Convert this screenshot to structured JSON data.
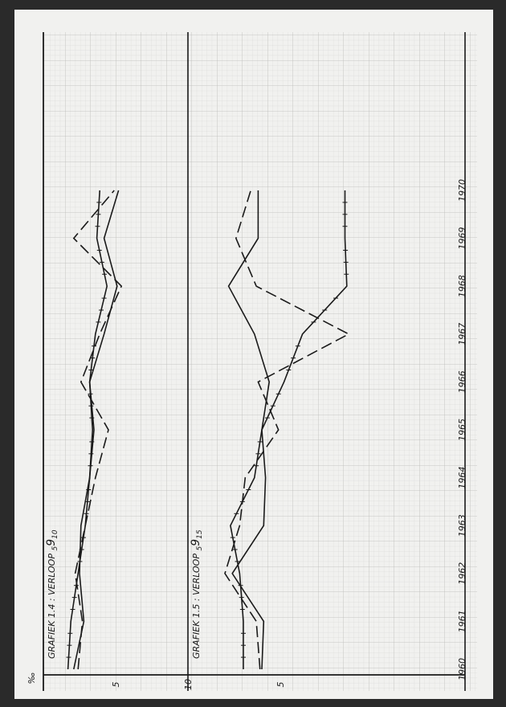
{
  "chart_data": [
    {
      "type": "line",
      "title": "GRAFIEK 1.4 : VERLOOP",
      "title_symbol": "5",
      "title_subscript": "9",
      "title_suffix": "10",
      "y_unit": "‰",
      "yticks": [
        "5",
        "10"
      ],
      "x": [
        "1960",
        "1961",
        "1962",
        "1963",
        "1964",
        "1965",
        "1966",
        "1967",
        "1968",
        "1969",
        "1970"
      ],
      "ylim": [
        0,
        10
      ],
      "series": [
        {
          "style": "solid",
          "values": [
            2.1,
            2.8,
            2.5,
            2.6,
            3.2,
            3.5,
            3.2,
            4.2,
            5.1,
            4.2,
            5.2
          ]
        },
        {
          "style": "dashed",
          "values": [
            2.4,
            2.7,
            2.2,
            2.9,
            3.6,
            4.5,
            2.6,
            3.9,
            5.4,
            2.1,
            4.9
          ]
        },
        {
          "style": "crossed",
          "values": [
            1.7,
            1.9,
            2.4,
            2.9,
            3.2,
            3.4,
            3.2,
            3.6,
            4.4,
            3.7,
            3.9
          ]
        }
      ]
    },
    {
      "type": "line",
      "title": "GRAFIEK 1.5 : VERLOOP",
      "title_symbol": "5",
      "title_subscript": "9",
      "title_suffix": "15",
      "y_unit": "‰",
      "yticks": [
        "5"
      ],
      "x": [
        "1960",
        "1961",
        "1962",
        "1963",
        "1964",
        "1965",
        "1966",
        "1967",
        "1968",
        "1969",
        "1970"
      ],
      "ylim": [
        0,
        15
      ],
      "series": [
        {
          "style": "solid",
          "values": [
            4.0,
            4.1,
            2.4,
            4.1,
            4.2,
            4.0,
            4.4,
            3.6,
            2.2,
            3.8,
            3.8
          ]
        },
        {
          "style": "dashed",
          "values": [
            3.9,
            3.7,
            2.0,
            2.8,
            3.1,
            4.9,
            3.8,
            8.7,
            3.7,
            2.6,
            3.4
          ]
        },
        {
          "style": "crossed",
          "values": [
            3.0,
            3.0,
            2.8,
            2.3,
            3.6,
            4.0,
            5.2,
            6.2,
            8.6,
            8.5,
            8.5
          ]
        }
      ]
    }
  ]
}
